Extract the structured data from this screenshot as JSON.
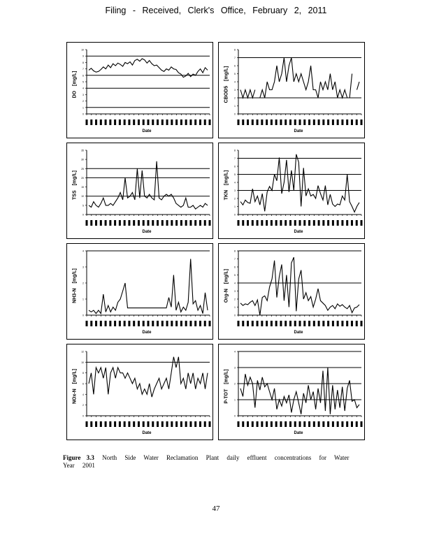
{
  "header": "Filing - Received, Clerk's Office, February 2, 2011",
  "caption": {
    "label": "Figure 3.3",
    "text": "North Side Water Reclamation Plant daily effluent concentrations for Water Year 2001"
  },
  "page_number": "47",
  "chart_data": [
    {
      "type": "line",
      "title": "",
      "ylabel": "DO [mg/L]",
      "xlabel": "Date",
      "ylim": [
        0,
        10
      ],
      "yticks": [
        0,
        1,
        2,
        3,
        4,
        5,
        6,
        7,
        8,
        9,
        10
      ],
      "hlines": [
        1,
        4,
        6,
        9
      ],
      "values": [
        6.8,
        7.1,
        6.7,
        6.5,
        6.6,
        6.9,
        7.3,
        7.0,
        7.6,
        7.2,
        7.8,
        7.5,
        7.9,
        7.7,
        7.4,
        8.0,
        7.8,
        8.1,
        7.6,
        8.3,
        8.5,
        8.2,
        8.6,
        8.4,
        7.9,
        8.3,
        7.8,
        7.5,
        7.6,
        7.2,
        6.8,
        6.6,
        7.0,
        6.8,
        7.3,
        7.0,
        6.9,
        6.4,
        6.2,
        5.7,
        5.9,
        6.3,
        5.8,
        6.2,
        6.0,
        6.6,
        7.0,
        6.4,
        7.2,
        6.8
      ]
    },
    {
      "type": "line",
      "title": "",
      "ylabel": "CBOD5 [mg/L]",
      "xlabel": "Date",
      "ylim": [
        0,
        8
      ],
      "yticks": [
        0,
        1,
        2,
        3,
        4,
        5,
        6,
        7,
        8
      ],
      "hlines": [
        2,
        7
      ],
      "values": [
        3,
        2,
        3,
        2,
        3,
        2,
        3,
        null,
        2,
        3,
        2,
        4,
        3,
        3,
        4,
        6,
        4,
        5,
        7,
        4,
        6,
        7,
        4,
        5,
        4,
        5,
        4,
        3,
        4,
        6,
        3,
        3,
        2,
        4,
        3,
        4,
        3,
        5,
        3,
        4,
        2,
        3,
        2,
        3,
        2,
        2,
        5,
        null,
        3,
        4
      ]
    },
    {
      "type": "line",
      "title": "",
      "ylabel": "TSS [mg/L]",
      "xlabel": "Date",
      "ylim": [
        0,
        35
      ],
      "yticks": [
        0,
        5,
        10,
        15,
        20,
        25,
        30,
        35
      ],
      "hlines": [
        10,
        20,
        25
      ],
      "values": [
        5,
        4,
        7,
        5,
        4,
        6,
        9,
        5,
        5,
        6,
        5,
        7,
        9,
        12,
        8,
        20,
        9,
        10,
        12,
        8,
        25,
        9,
        24,
        10,
        9,
        11,
        9,
        8,
        29,
        9,
        8,
        10,
        11,
        10,
        11,
        9,
        6,
        5,
        4,
        5,
        9,
        4,
        4,
        5,
        3,
        4,
        5,
        4,
        6,
        5
      ]
    },
    {
      "type": "line",
      "title": "",
      "ylabel": "TKN [mg/L]",
      "xlabel": "Date",
      "ylim": [
        0,
        8
      ],
      "yticks": [
        0,
        1,
        2,
        3,
        4,
        5,
        6,
        7,
        8
      ],
      "hlines": [
        3,
        5,
        7
      ],
      "values": [
        1.6,
        1.2,
        1.8,
        1.5,
        1.4,
        3.2,
        1.6,
        2.3,
        1.2,
        2.6,
        0.4,
        2.8,
        3.5,
        3.0,
        5.0,
        4.2,
        7.1,
        2.6,
        4.0,
        6.8,
        2.8,
        5.5,
        3.0,
        7.5,
        6.5,
        1.0,
        5.8,
        2.3,
        3.2,
        2.3,
        2.5,
        2.0,
        3.6,
        2.6,
        1.8,
        3.6,
        1.2,
        2.5,
        1.3,
        1.0,
        1.3,
        1.2,
        2.3,
        1.8,
        5.0,
        1.6,
        1.0,
        0.3,
        1.0,
        1.5
      ]
    },
    {
      "type": "line",
      "title": "",
      "ylabel": "NH3-N [mg/L]",
      "xlabel": "Date",
      "ylim": [
        0,
        4
      ],
      "yticks": [
        0,
        1,
        2,
        3,
        4
      ],
      "hlines": [
        4
      ],
      "values": [
        0.3,
        0.2,
        0.3,
        0.1,
        0.3,
        0.1,
        1.3,
        0.2,
        0.6,
        0.2,
        0.5,
        0.3,
        0.8,
        1.0,
        1.5,
        2.0,
        0.45,
        0.45,
        0.45,
        0.45,
        0.45,
        0.45,
        0.45,
        0.45,
        0.45,
        0.45,
        0.45,
        0.45,
        0.45,
        0.45,
        0.45,
        0.45,
        0.45,
        1.1,
        0.5,
        2.5,
        0.3,
        0.8,
        0.2,
        0.5,
        0.3,
        0.8,
        3.5,
        0.7,
        0.9,
        0.3,
        0.6,
        0.1,
        1.4,
        0.3
      ]
    },
    {
      "type": "line",
      "title": "",
      "ylabel": "Org-N [mg/L]",
      "xlabel": "Date",
      "ylim": [
        0,
        8
      ],
      "yticks": [
        0,
        1,
        2,
        3,
        4,
        5,
        6,
        7,
        8
      ],
      "hlines": [
        4,
        8
      ],
      "values": [
        1.5,
        1.2,
        1.4,
        1.3,
        1.6,
        1.8,
        1.2,
        1.9,
        0.0,
        2.2,
        2.4,
        1.8,
        3.5,
        4.5,
        6.8,
        2.2,
        4.8,
        6.3,
        1.8,
        5.0,
        1.0,
        6.5,
        7.2,
        0.5,
        4.5,
        5.6,
        2.0,
        2.8,
        1.8,
        2.3,
        1.0,
        2.0,
        3.3,
        1.8,
        1.5,
        1.2,
        0.6,
        1.0,
        1.2,
        0.8,
        1.4,
        1.1,
        1.3,
        1.0,
        0.8,
        1.2,
        0.3,
        0.9,
        1.0,
        1.3
      ]
    },
    {
      "type": "line",
      "title": "",
      "ylabel": "NOx-N [mg/L]",
      "xlabel": "Date",
      "ylim": [
        0,
        12
      ],
      "yticks": [
        0,
        2,
        4,
        6,
        8,
        10,
        12
      ],
      "hlines": [
        10
      ],
      "values": [
        6,
        8,
        4,
        9,
        8,
        9,
        7,
        9,
        4,
        8,
        9,
        7,
        9,
        8,
        8,
        7,
        8,
        7,
        6,
        7,
        5,
        6,
        4,
        5,
        4,
        6,
        3.5,
        5,
        6,
        7,
        5,
        6,
        7,
        5,
        8,
        11,
        9,
        11,
        6,
        7,
        5,
        8,
        6,
        8,
        5,
        7,
        6,
        8,
        5,
        8
      ]
    },
    {
      "type": "line",
      "title": "",
      "ylabel": "P-TOT [mg/L]",
      "xlabel": "Date",
      "ylim": [
        0,
        4
      ],
      "yticks": [
        0,
        1,
        2,
        3,
        4
      ],
      "hlines": [
        1,
        2,
        3,
        4
      ],
      "values": [
        1.7,
        1.2,
        2.6,
        1.9,
        2.4,
        2.0,
        0.5,
        2.2,
        1.6,
        2.4,
        1.8,
        2.0,
        1.5,
        1.0,
        1.7,
        0.4,
        1.0,
        0.6,
        1.2,
        0.8,
        1.3,
        0.2,
        1.0,
        1.5,
        0.8,
        0.1,
        1.4,
        0.8,
        1.9,
        1.0,
        1.5,
        0.4,
        1.7,
        0.8,
        2.8,
        0.3,
        3.0,
        0.1,
        1.9,
        0.4,
        1.6,
        0.5,
        1.8,
        0.3,
        1.7,
        2.2,
        0.9,
        1.0,
        0.5,
        0.7
      ]
    }
  ]
}
